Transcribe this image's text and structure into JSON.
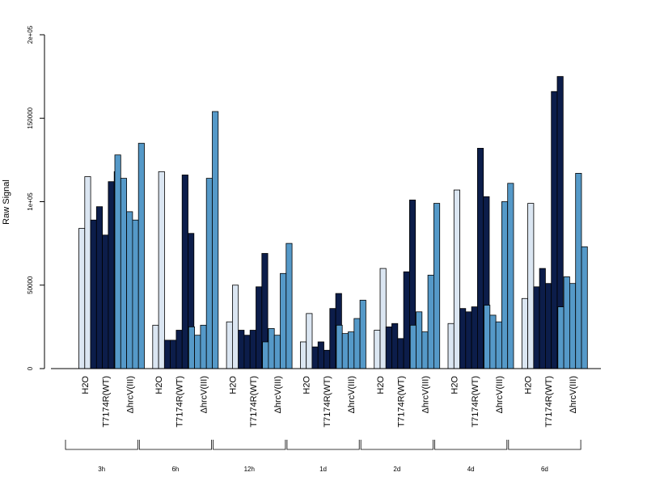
{
  "chart_data": {
    "type": "bar",
    "ylabel": "Raw Signal",
    "ylim": [
      0,
      200000
    ],
    "yticks": [
      {
        "value": 0,
        "label": "0"
      },
      {
        "value": 50000,
        "label": "50000"
      },
      {
        "value": 100000,
        "label": "1e+05"
      },
      {
        "value": 150000,
        "label": "150000"
      },
      {
        "value": 200000,
        "label": "2e+05"
      }
    ],
    "grid": false,
    "legend": "none",
    "colors": {
      "H2O": "#dbe6f2",
      "T7174R(WT)": "#0c1d4a",
      "ΔhrcV(III)": "#5599c8"
    },
    "groups": [
      {
        "time": "3h",
        "treatments": [
          {
            "name": "H2O",
            "values": [
              84000,
              115000
            ]
          },
          {
            "name": "T7174R(WT)",
            "values": [
              89000,
              97000,
              80000,
              112000,
              118000
            ]
          },
          {
            "name": "ΔhrcV(III)",
            "values": [
              128000,
              114000,
              94000,
              89000,
              135000
            ]
          }
        ]
      },
      {
        "time": "6h",
        "treatments": [
          {
            "name": "H2O",
            "values": [
              26000,
              118000
            ]
          },
          {
            "name": "T7174R(WT)",
            "values": [
              17000,
              17000,
              23000,
              116000,
              81000
            ]
          },
          {
            "name": "ΔhrcV(III)",
            "values": [
              25000,
              20000,
              26000,
              114000,
              154000
            ]
          }
        ]
      },
      {
        "time": "12h",
        "treatments": [
          {
            "name": "H2O",
            "values": [
              28000,
              50000
            ]
          },
          {
            "name": "T7174R(WT)",
            "values": [
              23000,
              20000,
              23000,
              49000,
              69000
            ]
          },
          {
            "name": "ΔhrcV(III)",
            "values": [
              16000,
              24000,
              20000,
              57000,
              75000
            ]
          }
        ]
      },
      {
        "time": "1d",
        "treatments": [
          {
            "name": "H2O",
            "values": [
              16000,
              33000
            ]
          },
          {
            "name": "T7174R(WT)",
            "values": [
              13000,
              16000,
              11000,
              36000,
              45000
            ]
          },
          {
            "name": "ΔhrcV(III)",
            "values": [
              26000,
              21000,
              22000,
              30000,
              41000
            ]
          }
        ]
      },
      {
        "time": "2d",
        "treatments": [
          {
            "name": "H2O",
            "values": [
              23000,
              60000
            ]
          },
          {
            "name": "T7174R(WT)",
            "values": [
              25000,
              27000,
              18000,
              58000,
              101000
            ]
          },
          {
            "name": "ΔhrcV(III)",
            "values": [
              26000,
              34000,
              22000,
              56000,
              99000
            ]
          }
        ]
      },
      {
        "time": "4d",
        "treatments": [
          {
            "name": "H2O",
            "values": [
              27000,
              107000
            ]
          },
          {
            "name": "T7174R(WT)",
            "values": [
              36000,
              34000,
              37000,
              132000,
              103000
            ]
          },
          {
            "name": "ΔhrcV(III)",
            "values": [
              38000,
              32000,
              28000,
              100000,
              111000
            ]
          }
        ]
      },
      {
        "time": "6d",
        "treatments": [
          {
            "name": "H2O",
            "values": [
              42000,
              99000
            ]
          },
          {
            "name": "T7174R(WT)",
            "values": [
              49000,
              60000,
              51000,
              166000,
              175000
            ]
          },
          {
            "name": "ΔhrcV(III)",
            "values": [
              37000,
              55000,
              51000,
              117000,
              73000
            ]
          }
        ]
      }
    ]
  }
}
